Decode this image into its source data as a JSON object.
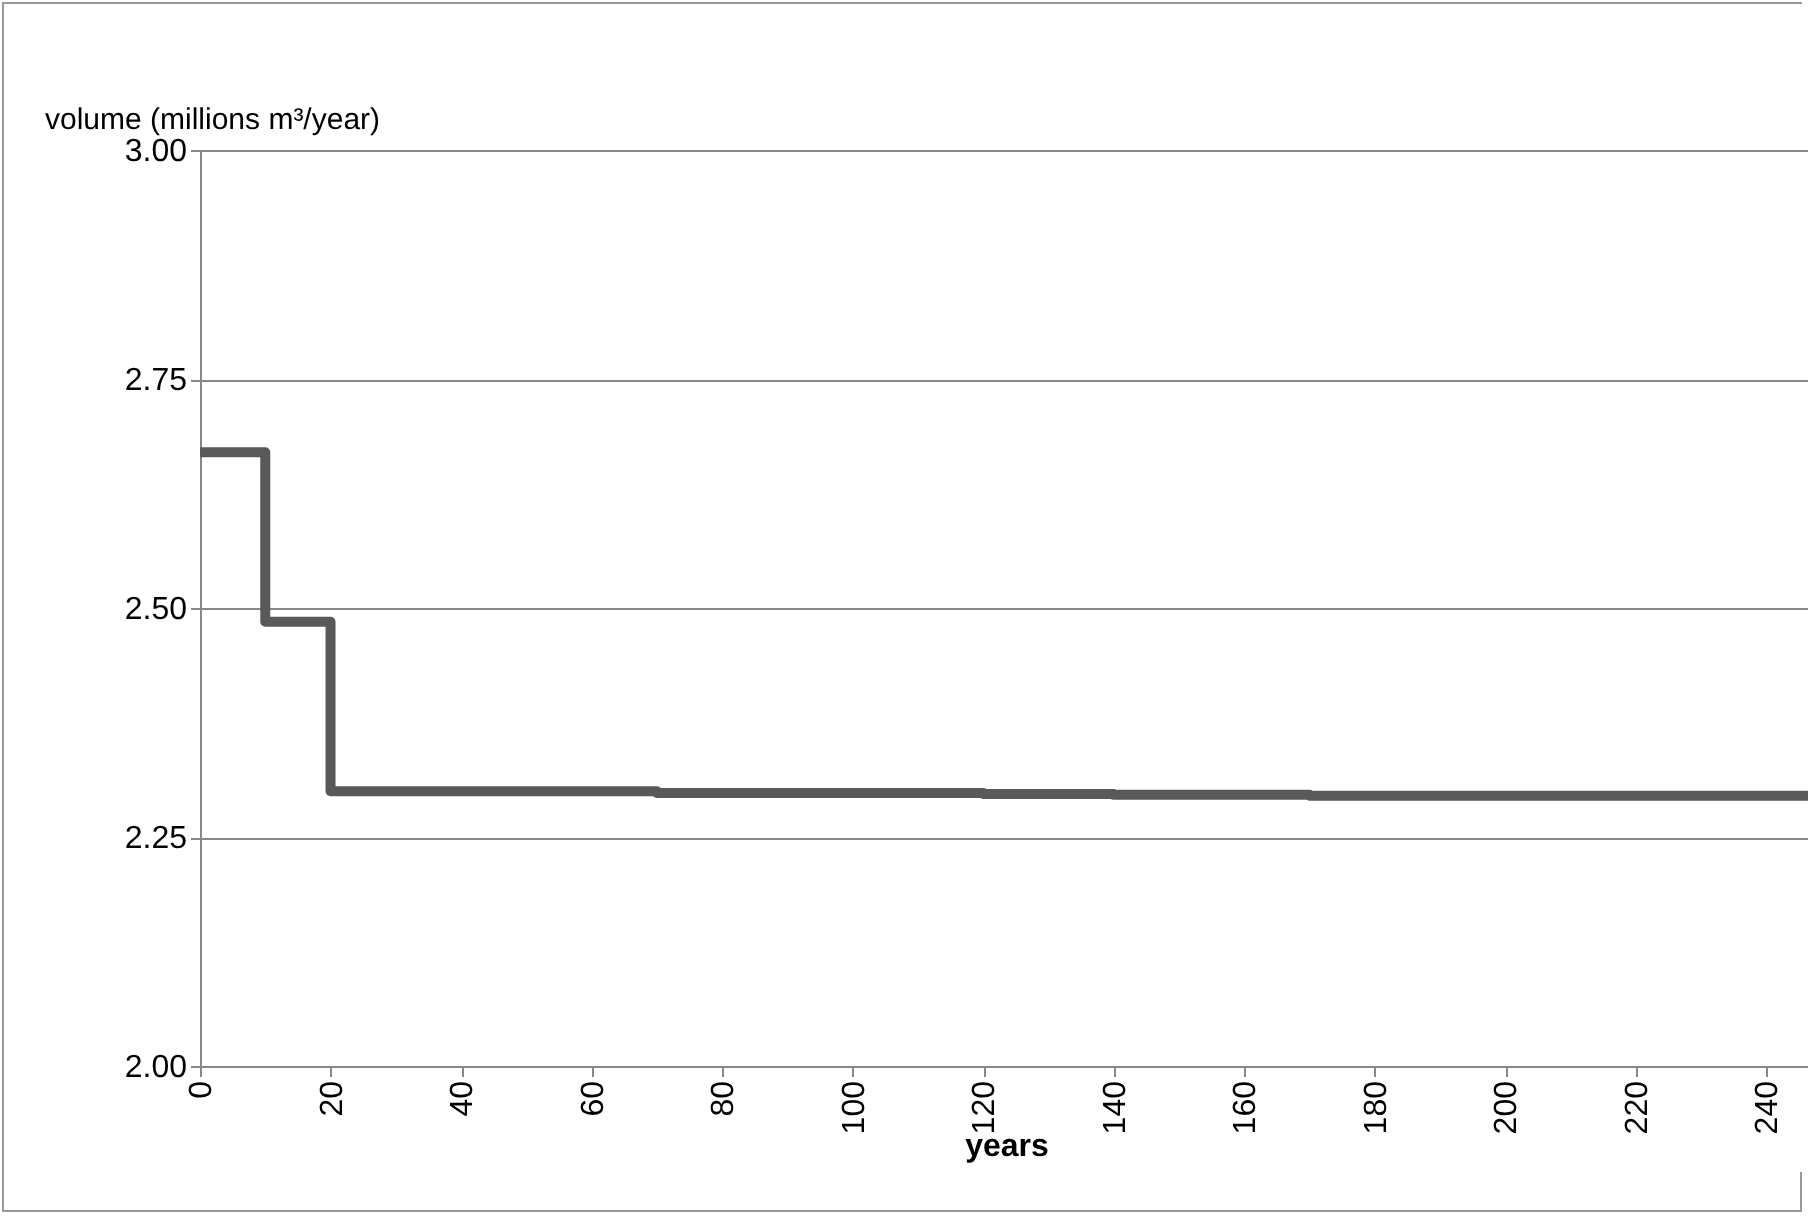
{
  "chart_data": {
    "type": "step",
    "xlabel": "years",
    "ylabel": "volume (millions m³/year)",
    "x": [
      0,
      10,
      20,
      30,
      40,
      50,
      60,
      70,
      80,
      90,
      100,
      110,
      120,
      130,
      140,
      150,
      160,
      170,
      180,
      190,
      200,
      210,
      220,
      230,
      240,
      247
    ],
    "series": [
      {
        "color": "#595959",
        "values": [
          2.67,
          2.485,
          2.3,
          2.3,
          2.3,
          2.3,
          2.3,
          2.298,
          2.298,
          2.298,
          2.298,
          2.298,
          2.297,
          2.297,
          2.296,
          2.296,
          2.296,
          2.295,
          2.295,
          2.295,
          2.295,
          2.295,
          2.295,
          2.295,
          2.295,
          2.295
        ]
      }
    ],
    "xlim": [
      0,
      247
    ],
    "xticks": [
      0,
      20,
      40,
      60,
      80,
      100,
      120,
      140,
      160,
      180,
      200,
      220,
      240
    ],
    "ylim": [
      2,
      3
    ],
    "yticks": [
      {
        "value": 2,
        "label": "2.00"
      },
      {
        "value": 2.25,
        "label": "2.25"
      },
      {
        "value": 2.5,
        "label": "2.50"
      },
      {
        "value": 2.75,
        "label": "2.75"
      },
      {
        "value": 3,
        "label": "3.00"
      }
    ],
    "grid": "y",
    "legend": false,
    "marker": "none",
    "line_style": "solid"
  }
}
